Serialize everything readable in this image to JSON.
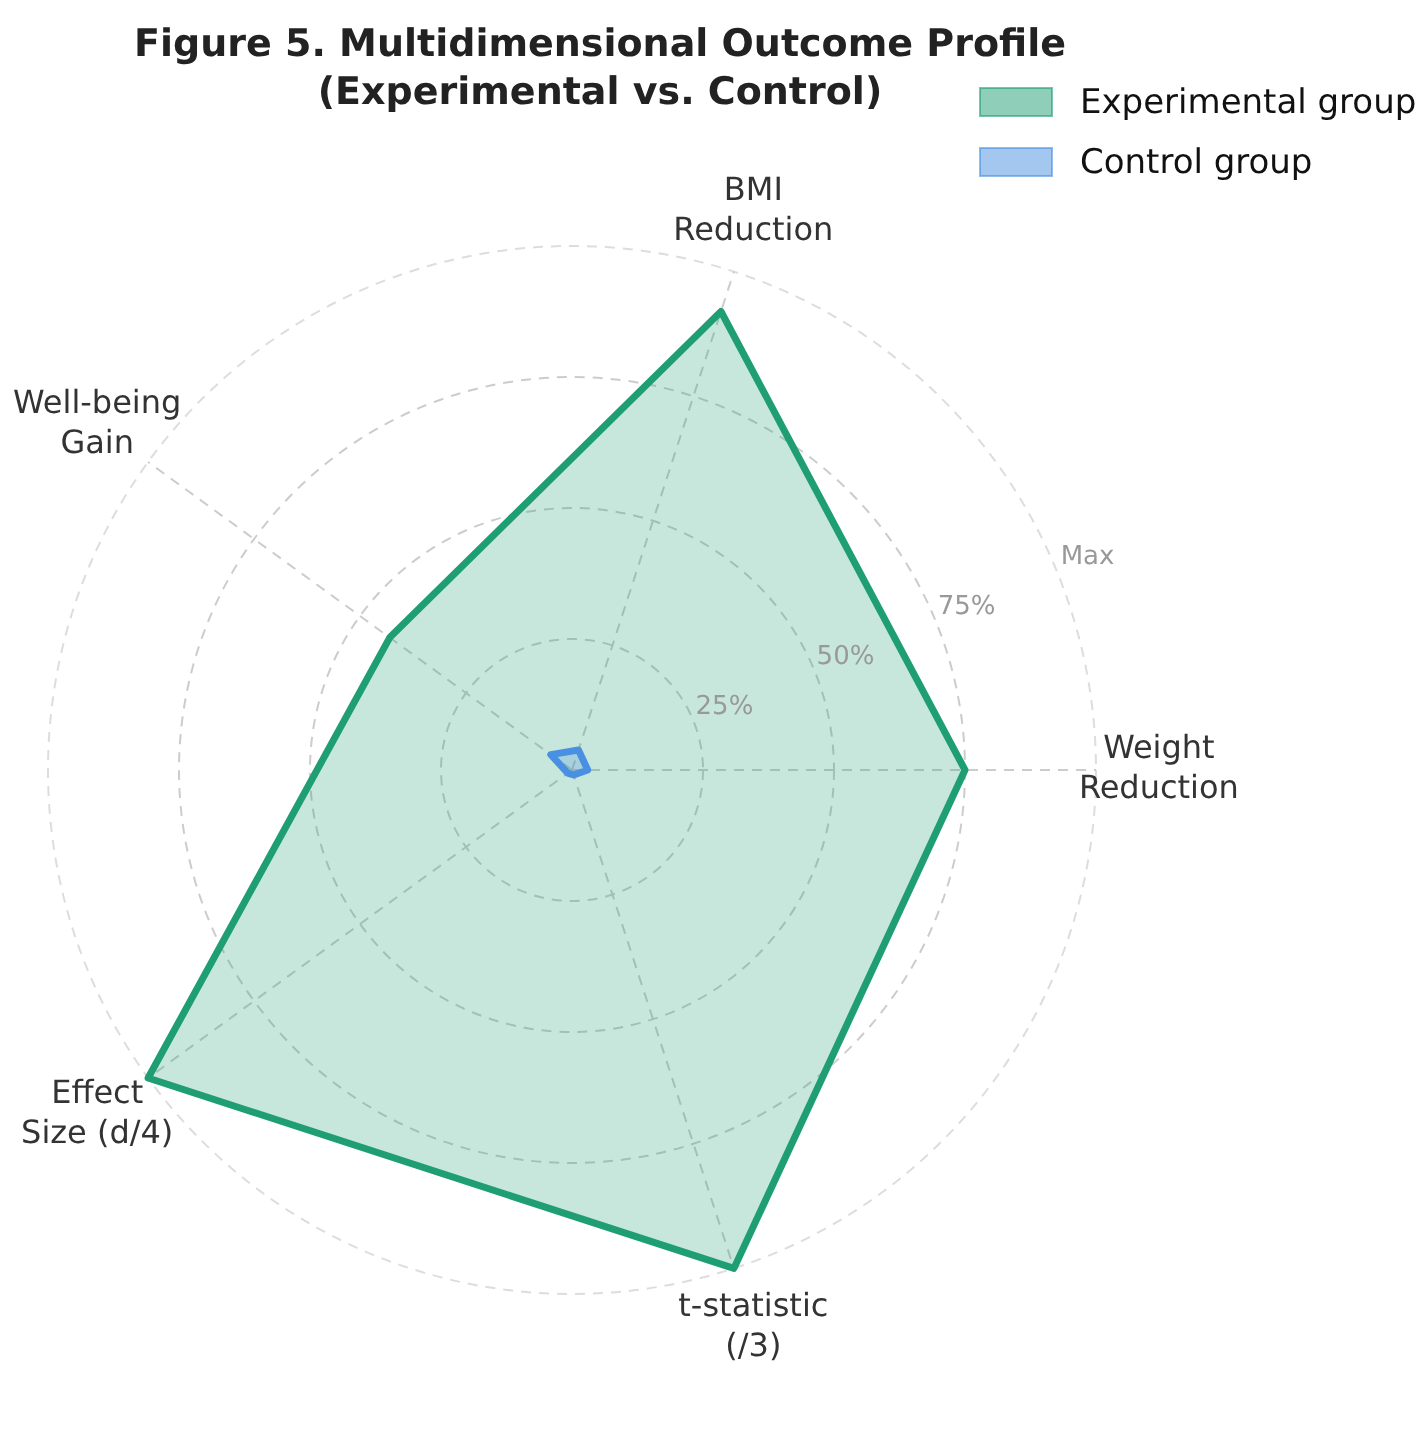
{
  "chart_data": {
    "type": "radar",
    "title": "Figure 5. Multidimensional Outcome Profile\n(Experimental vs. Control)",
    "categories": [
      "BMI\nReduction",
      "Weight\nReduction",
      "t-statistic\n(/3)",
      "Effect\nSize (d/4)",
      "Well-being\nGain"
    ],
    "series": [
      {
        "name": "Experimental group",
        "color": "#1f9e74",
        "values": [
          0.92,
          0.75,
          1.0,
          1.0,
          0.43
        ]
      },
      {
        "name": "Control group",
        "color": "#4a90e2",
        "values": [
          0.04,
          0.03,
          0.01,
          0.01,
          0.05
        ]
      }
    ],
    "ylim": [
      0,
      1
    ],
    "yticks": [
      {
        "value": 0.25,
        "label": "25%"
      },
      {
        "value": 0.5,
        "label": "50%"
      },
      {
        "value": 0.75,
        "label": "75%"
      },
      {
        "value": 1,
        "label": "Max"
      }
    ],
    "grid": true,
    "legend": "top right"
  }
}
